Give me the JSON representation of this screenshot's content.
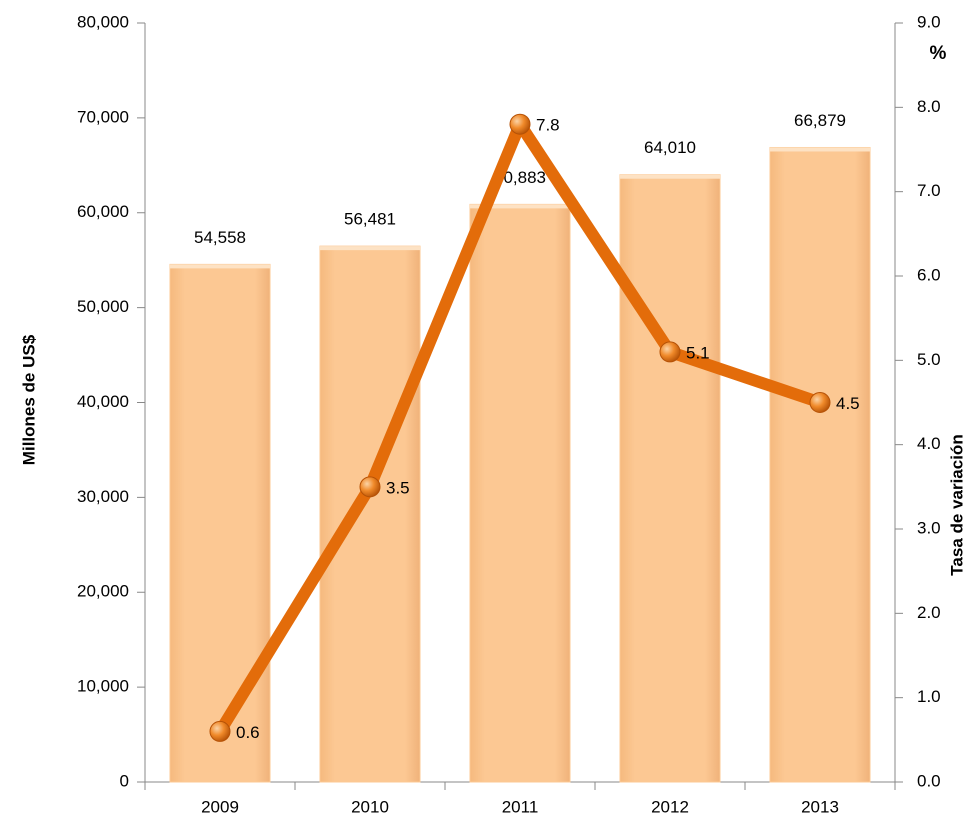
{
  "chart_data": {
    "type": "bar",
    "y_label": "Millones de US$",
    "y2_label": "Tasa de variación",
    "y2_unit": "%",
    "categories": [
      "2009",
      "2010",
      "2011",
      "2012",
      "2013"
    ],
    "series": [
      {
        "type": "bar",
        "color": "#fcc893",
        "values": [
          54558,
          56481,
          60883,
          64010,
          66879
        ],
        "value_labels": [
          "54,558",
          "56,481",
          "60,883",
          "64,010",
          "66,879"
        ]
      },
      {
        "type": "line",
        "axis": "y2",
        "color": "#e36c0a",
        "values": [
          0.6,
          3.5,
          7.8,
          5.1,
          4.5
        ]
      }
    ],
    "ylim": [
      0,
      80000
    ],
    "yticks": [
      0,
      {
        "value": 10000,
        "label": "10,000"
      },
      {
        "value": 20000,
        "label": "20,000"
      },
      {
        "value": 30000,
        "label": "30,000"
      },
      {
        "value": 40000,
        "label": "40,000"
      },
      {
        "value": 50000,
        "label": "50,000"
      },
      {
        "value": 60000,
        "label": "60,000"
      },
      {
        "value": 70000,
        "label": "70,000"
      },
      {
        "value": 80000,
        "label": "80,000"
      }
    ],
    "y2lim": [
      0,
      9
    ],
    "y2ticks": [
      {
        "value": 0,
        "label": "0.0"
      },
      {
        "value": 1,
        "label": "1.0"
      },
      {
        "value": 2,
        "label": "2.0"
      },
      {
        "value": 3,
        "label": "3.0"
      },
      {
        "value": 4,
        "label": "4.0"
      },
      {
        "value": 5,
        "label": "5.0"
      },
      {
        "value": 6,
        "label": "6.0"
      },
      {
        "value": 7,
        "label": "7.0"
      },
      {
        "value": 8,
        "label": "8.0"
      },
      {
        "value": 9,
        "label": "9.0"
      }
    ]
  }
}
